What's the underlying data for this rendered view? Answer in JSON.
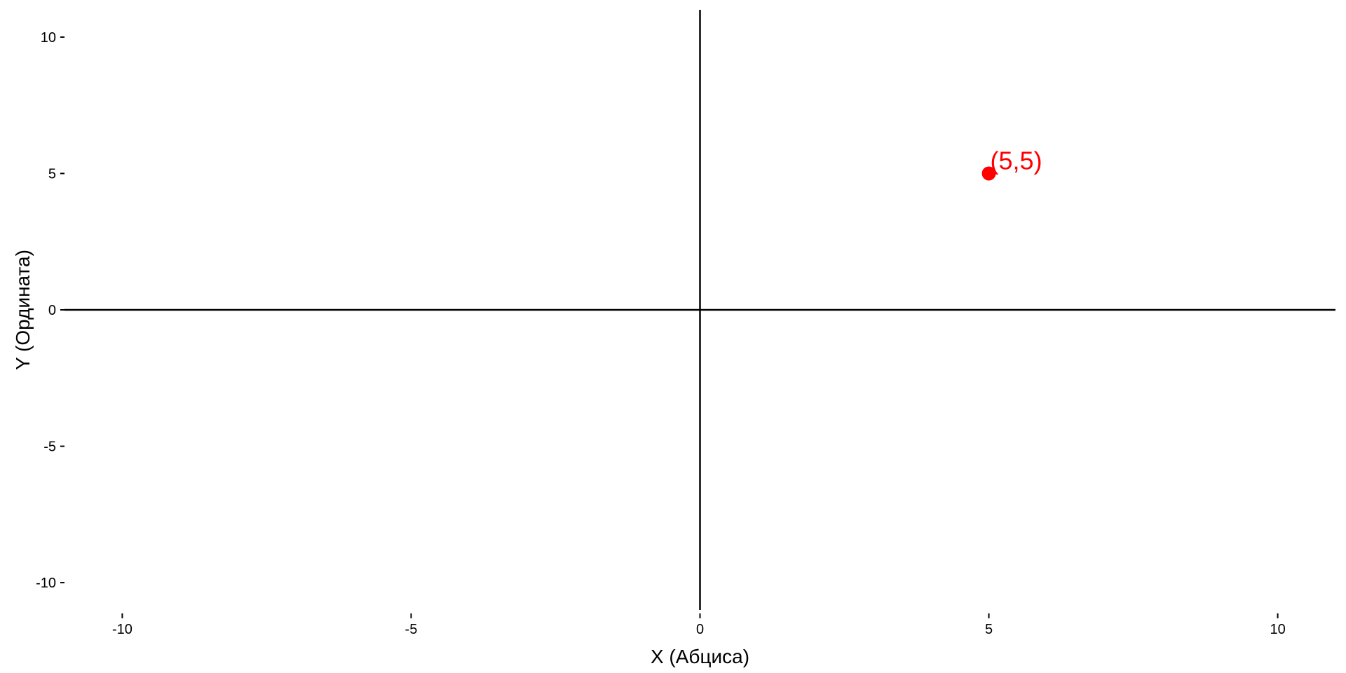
{
  "chart_data": {
    "type": "scatter",
    "title": "",
    "xlabel": "X (Абциса)",
    "ylabel": "Y (Ордината)",
    "xlim": [
      -11,
      11
    ],
    "ylim": [
      -11,
      11
    ],
    "x_ticks": [
      -10,
      -5,
      0,
      5,
      10
    ],
    "y_ticks": [
      -10,
      -5,
      0,
      5,
      10
    ],
    "x_tick_labels": [
      "-10",
      "-5",
      "0",
      "5",
      "10"
    ],
    "y_tick_labels": [
      "-10",
      "-5",
      "0",
      "5",
      "10"
    ],
    "grid": false,
    "reference_lines": {
      "x": 0,
      "y": 0
    },
    "points": [
      {
        "x": 5,
        "y": 5,
        "label": "(5,5)",
        "color": "#ff0000"
      }
    ]
  }
}
